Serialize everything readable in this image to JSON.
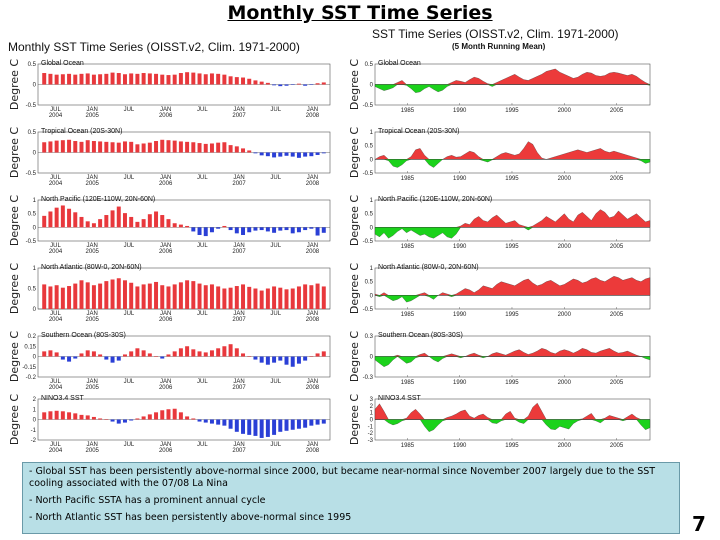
{
  "slide": {
    "title": "Monthly SST Time Series",
    "page_number": "7",
    "notes": [
      "- Global SST has been persistently above-normal since 2000, but became near-normal since November 2007 largely due to the SST cooling associated with the 07/08 La Nina",
      "- North Pacific SSTA has a prominent annual cycle",
      "- North Atlantic SST has been persistently above-normal since 1995"
    ]
  },
  "left_header": "Monthly SST Time Series (OISST.v2, Clim. 1971-2000)",
  "right_header": "SST Time Series (OISST.v2, Clim. 1971-2000)",
  "right_subheader": "(5 Month Running Mean)",
  "ylabel": "Degree C",
  "colors": {
    "positive": "#e8383c",
    "negative": "#2a3fd6",
    "positive_area": "#ec3a3a",
    "negative_area": "#1bd21b"
  },
  "chart_data": [
    {
      "type": "bar",
      "title": "Global Ocean",
      "ylabel": "Degree C",
      "ylim": [
        -0.5,
        0.5
      ],
      "yticks": [
        "0.5",
        "0",
        "-0.5"
      ],
      "xticks": [
        [
          "JUL",
          "2004"
        ],
        [
          "JAN",
          "2005"
        ],
        [
          "JUL",
          ""
        ],
        [
          "JAN",
          "2006"
        ],
        [
          "JUL",
          ""
        ],
        [
          "JAN",
          "2007"
        ],
        [
          "JUL",
          ""
        ],
        [
          "JAN",
          "2008"
        ]
      ],
      "values": [
        0.28,
        0.26,
        0.24,
        0.25,
        0.26,
        0.24,
        0.26,
        0.27,
        0.24,
        0.25,
        0.26,
        0.29,
        0.28,
        0.25,
        0.27,
        0.26,
        0.28,
        0.27,
        0.26,
        0.24,
        0.23,
        0.24,
        0.28,
        0.3,
        0.29,
        0.27,
        0.25,
        0.27,
        0.26,
        0.24,
        0.2,
        0.18,
        0.17,
        0.14,
        0.1,
        0.07,
        0.04,
        -0.02,
        -0.04,
        -0.03,
        -0.01,
        0.02,
        -0.03,
        -0.01,
        0.03,
        0.05
      ]
    },
    {
      "type": "bar",
      "title": "Tropical Ocean (20S-30N)",
      "ylabel": "Degree C",
      "ylim": [
        -0.5,
        0.5
      ],
      "yticks": [
        "0.5",
        "0",
        "-0.5"
      ],
      "xticks": [
        [
          "JUL",
          "2004"
        ],
        [
          "JAN",
          "2005"
        ],
        [
          "JUL",
          ""
        ],
        [
          "JAN",
          "2006"
        ],
        [
          "JUL",
          ""
        ],
        [
          "JAN",
          "2007"
        ],
        [
          "JUL",
          ""
        ],
        [
          "JAN",
          "2008"
        ]
      ],
      "values": [
        0.25,
        0.27,
        0.29,
        0.3,
        0.31,
        0.28,
        0.26,
        0.3,
        0.28,
        0.27,
        0.26,
        0.25,
        0.24,
        0.27,
        0.26,
        0.2,
        0.22,
        0.24,
        0.28,
        0.31,
        0.3,
        0.29,
        0.27,
        0.26,
        0.25,
        0.23,
        0.21,
        0.22,
        0.24,
        0.25,
        0.18,
        0.15,
        0.1,
        0.05,
        -0.02,
        -0.07,
        -0.09,
        -0.12,
        -0.1,
        -0.08,
        -0.1,
        -0.13,
        -0.1,
        -0.09,
        -0.06,
        -0.02
      ]
    },
    {
      "type": "bar",
      "title": "North Pacific (120E-110W, 20N-60N)",
      "ylabel": "Degree C",
      "ylim": [
        -0.5,
        1
      ],
      "yticks": [
        "1",
        "0.5",
        "0",
        "-0.5"
      ],
      "xticks": [
        [
          "JUL",
          "2004"
        ],
        [
          "JAN",
          "2005"
        ],
        [
          "JUL",
          ""
        ],
        [
          "JAN",
          "2006"
        ],
        [
          "JUL",
          ""
        ],
        [
          "JAN",
          "2007"
        ],
        [
          "JUL",
          ""
        ],
        [
          "JAN",
          "2008"
        ]
      ],
      "values": [
        0.42,
        0.58,
        0.72,
        0.8,
        0.68,
        0.55,
        0.38,
        0.22,
        0.15,
        0.3,
        0.45,
        0.62,
        0.76,
        0.52,
        0.38,
        0.2,
        0.3,
        0.48,
        0.58,
        0.45,
        0.3,
        0.15,
        0.1,
        0.05,
        -0.15,
        -0.28,
        -0.32,
        -0.18,
        -0.05,
        0.05,
        -0.1,
        -0.22,
        -0.28,
        -0.18,
        -0.12,
        -0.1,
        -0.15,
        -0.2,
        -0.12,
        -0.1,
        -0.22,
        -0.18,
        -0.1,
        -0.05,
        -0.3,
        -0.2
      ]
    },
    {
      "type": "bar",
      "title": "North Atlantic (80W-0, 20N-60N)",
      "ylabel": "Degree C",
      "ylim": [
        0,
        1
      ],
      "yticks": [
        "1",
        "0.5",
        "0"
      ],
      "xticks": [
        [
          "JUL",
          "2004"
        ],
        [
          "JAN",
          "2005"
        ],
        [
          "JUL",
          ""
        ],
        [
          "JAN",
          "2006"
        ],
        [
          "JUL",
          ""
        ],
        [
          "JAN",
          "2007"
        ],
        [
          "JUL",
          ""
        ],
        [
          "JAN",
          "2008"
        ]
      ],
      "values": [
        0.6,
        0.55,
        0.58,
        0.52,
        0.56,
        0.62,
        0.7,
        0.65,
        0.58,
        0.62,
        0.68,
        0.72,
        0.75,
        0.7,
        0.64,
        0.55,
        0.6,
        0.62,
        0.66,
        0.58,
        0.55,
        0.6,
        0.65,
        0.7,
        0.68,
        0.62,
        0.58,
        0.6,
        0.55,
        0.5,
        0.52,
        0.56,
        0.6,
        0.54,
        0.5,
        0.45,
        0.5,
        0.55,
        0.52,
        0.48,
        0.5,
        0.55,
        0.6,
        0.58,
        0.62,
        0.55
      ]
    },
    {
      "type": "bar",
      "title": "Southern Ocean (80S-30S)",
      "ylabel": "Degree C",
      "ylim": [
        -0.2,
        0.2
      ],
      "yticks": [
        "0.2",
        "0.15",
        "0",
        "-0.15",
        "-0.2"
      ],
      "xticks": [
        [
          "JUL",
          "2004"
        ],
        [
          "JAN",
          "2005"
        ],
        [
          "JUL",
          ""
        ],
        [
          "JAN",
          "2006"
        ],
        [
          "JUL",
          ""
        ],
        [
          "JAN",
          "2007"
        ],
        [
          "JUL",
          ""
        ],
        [
          "JAN",
          "2008"
        ]
      ],
      "values": [
        0.05,
        0.06,
        0.04,
        -0.03,
        -0.05,
        -0.02,
        0.03,
        0.06,
        0.05,
        0.02,
        -0.03,
        -0.06,
        -0.04,
        0.02,
        0.05,
        0.08,
        0.06,
        0.03,
        0.0,
        -0.02,
        0.02,
        0.05,
        0.08,
        0.1,
        0.07,
        0.05,
        0.04,
        0.06,
        0.08,
        0.1,
        0.12,
        0.08,
        0.03,
        0.0,
        -0.03,
        -0.06,
        -0.08,
        -0.06,
        -0.04,
        -0.08,
        -0.1,
        -0.07,
        -0.04,
        0.0,
        0.03,
        0.05
      ]
    },
    {
      "type": "bar",
      "title": "NINO3.4 SST",
      "ylabel": "Degree C",
      "ylim": [
        -2,
        2
      ],
      "yticks": [
        "2",
        "1",
        "0",
        "-1",
        "-2"
      ],
      "xticks": [
        [
          "JUL",
          "2004"
        ],
        [
          "JAN",
          "2005"
        ],
        [
          "JUL",
          ""
        ],
        [
          "JAN",
          "2006"
        ],
        [
          "JUL",
          ""
        ],
        [
          "JAN",
          "2007"
        ],
        [
          "JUL",
          ""
        ],
        [
          "JAN",
          "2008"
        ]
      ],
      "values": [
        0.7,
        0.8,
        0.85,
        0.8,
        0.7,
        0.6,
        0.45,
        0.4,
        0.25,
        0.1,
        0.0,
        -0.2,
        -0.4,
        -0.3,
        -0.1,
        0.1,
        0.3,
        0.5,
        0.7,
        0.9,
        1.0,
        1.05,
        0.7,
        0.3,
        0.1,
        -0.2,
        -0.3,
        -0.4,
        -0.5,
        -0.6,
        -0.9,
        -1.2,
        -1.4,
        -1.5,
        -1.6,
        -1.8,
        -1.7,
        -1.5,
        -1.2,
        -1.1,
        -1.0,
        -0.9,
        -0.8,
        -0.6,
        -0.5,
        -0.4
      ]
    },
    {
      "type": "area",
      "title": "Global Ocean",
      "ylabel": "Degree C",
      "ylim": [
        -0.5,
        0.5
      ],
      "yticks": [
        "0.5",
        "0",
        "-0.5"
      ],
      "xticks": [
        "1985",
        "1990",
        "1995",
        "2000",
        "2005"
      ],
      "x_range": [
        1981.9,
        2008.2
      ],
      "values": [
        -0.05,
        -0.1,
        -0.15,
        -0.12,
        -0.08,
        0.05,
        0.1,
        -0.02,
        -0.1,
        -0.2,
        -0.18,
        -0.1,
        -0.05,
        -0.12,
        -0.18,
        -0.14,
        -0.05,
        0.05,
        0.1,
        0.08,
        0.05,
        0.12,
        0.18,
        0.15,
        0.08,
        0.02,
        -0.05,
        0.05,
        0.1,
        0.15,
        0.2,
        0.25,
        0.18,
        0.12,
        0.1,
        0.15,
        0.2,
        0.25,
        0.32,
        0.35,
        0.38,
        0.3,
        0.25,
        0.2,
        0.15,
        0.18,
        0.25,
        0.3,
        0.28,
        0.22,
        0.2,
        0.22,
        0.28,
        0.3,
        0.28,
        0.25,
        0.22,
        0.25,
        0.2,
        0.12,
        0.05,
        -0.02
      ]
    },
    {
      "type": "area",
      "title": "Tropical Ocean (20S-30N)",
      "ylabel": "Degree C",
      "ylim": [
        -0.5,
        1
      ],
      "yticks": [
        "1",
        "0.5",
        "0",
        "-0.5"
      ],
      "xticks": [
        "1985",
        "1990",
        "1995",
        "2000",
        "2005"
      ],
      "x_range": [
        1981.9,
        2008.2
      ],
      "values": [
        0.0,
        0.1,
        0.15,
        -0.05,
        -0.25,
        -0.3,
        -0.2,
        -0.05,
        0.1,
        0.35,
        0.4,
        0.15,
        -0.2,
        -0.3,
        -0.15,
        0.0,
        0.1,
        0.15,
        0.08,
        0.1,
        0.2,
        0.3,
        0.25,
        0.1,
        -0.05,
        -0.1,
        -0.02,
        0.1,
        0.2,
        0.25,
        0.2,
        0.15,
        0.2,
        0.4,
        0.65,
        0.55,
        0.25,
        0.05,
        0.0,
        0.05,
        0.1,
        0.15,
        0.2,
        0.25,
        0.3,
        0.35,
        0.3,
        0.25,
        0.3,
        0.35,
        0.4,
        0.3,
        0.25,
        0.3,
        0.25,
        0.2,
        0.15,
        0.1,
        0.05,
        -0.05,
        -0.15,
        -0.1
      ]
    },
    {
      "type": "area",
      "title": "North Pacific (120E-110W, 20N-60N)",
      "ylabel": "Degree C",
      "ylim": [
        -0.5,
        1
      ],
      "yticks": [
        "1",
        "0.5",
        "0",
        "-0.5"
      ],
      "xticks": [
        "1985",
        "1990",
        "1995",
        "2000",
        "2005"
      ],
      "x_range": [
        1981.9,
        2008.2
      ],
      "values": [
        -0.25,
        -0.35,
        -0.2,
        -0.4,
        -0.3,
        -0.15,
        -0.05,
        -0.2,
        -0.1,
        -0.2,
        -0.3,
        -0.25,
        -0.35,
        -0.4,
        -0.3,
        -0.2,
        -0.35,
        -0.4,
        -0.25,
        0.05,
        0.15,
        0.1,
        0.3,
        0.4,
        0.25,
        0.2,
        0.35,
        0.45,
        0.3,
        0.15,
        0.2,
        0.25,
        0.1,
        0.05,
        -0.1,
        0.05,
        0.15,
        0.25,
        0.4,
        0.3,
        0.2,
        0.35,
        0.5,
        0.3,
        0.2,
        0.45,
        0.55,
        0.4,
        0.25,
        0.5,
        0.65,
        0.55,
        0.35,
        0.4,
        0.6,
        0.45,
        0.3,
        0.4,
        0.5,
        0.35,
        0.2,
        0.25
      ]
    },
    {
      "type": "area",
      "title": "North Atlantic (80W-0, 20N-60N)",
      "ylabel": "Degree C",
      "ylim": [
        -0.5,
        1
      ],
      "yticks": [
        "1",
        "0.5",
        "0",
        "-0.5"
      ],
      "xticks": [
        "1985",
        "1990",
        "1995",
        "2000",
        "2005"
      ],
      "x_range": [
        1981.9,
        2008.2
      ],
      "values": [
        0.05,
        -0.05,
        0.1,
        -0.1,
        -0.2,
        -0.15,
        -0.05,
        -0.25,
        -0.2,
        -0.1,
        0.05,
        0.1,
        -0.05,
        -0.15,
        0.0,
        0.1,
        0.05,
        -0.05,
        0.05,
        0.15,
        0.25,
        0.2,
        0.1,
        0.2,
        0.35,
        0.3,
        0.25,
        0.4,
        0.5,
        0.45,
        0.4,
        0.35,
        0.45,
        0.55,
        0.6,
        0.45,
        0.35,
        0.4,
        0.5,
        0.55,
        0.45,
        0.35,
        0.4,
        0.5,
        0.6,
        0.55,
        0.45,
        0.5,
        0.6,
        0.65,
        0.55,
        0.5,
        0.6,
        0.7,
        0.65,
        0.55,
        0.6,
        0.65,
        0.55,
        0.5,
        0.6,
        0.65
      ]
    },
    {
      "type": "area",
      "title": "Southern Ocean (80S-30S)",
      "ylabel": "Degree C",
      "ylim": [
        -0.3,
        0.3
      ],
      "yticks": [
        "0.3",
        "0",
        "-0.3"
      ],
      "xticks": [
        "1985",
        "1990",
        "1995",
        "2000",
        "2005"
      ],
      "x_range": [
        1981.9,
        2008.2
      ],
      "values": [
        -0.05,
        -0.1,
        -0.15,
        -0.12,
        -0.05,
        0.02,
        -0.05,
        -0.1,
        -0.08,
        -0.02,
        0.03,
        0.05,
        0.0,
        -0.05,
        -0.08,
        -0.03,
        0.02,
        0.04,
        0.02,
        -0.02,
        0.0,
        0.03,
        0.05,
        0.02,
        -0.02,
        0.0,
        0.04,
        0.06,
        0.04,
        0.02,
        0.05,
        0.08,
        0.1,
        0.06,
        0.03,
        0.05,
        0.08,
        0.12,
        0.1,
        0.06,
        0.04,
        0.08,
        0.1,
        0.08,
        0.05,
        0.08,
        0.12,
        0.1,
        0.06,
        0.05,
        0.08,
        0.1,
        0.12,
        0.08,
        0.05,
        0.06,
        0.08,
        0.05,
        0.02,
        0.0,
        -0.03,
        -0.05
      ]
    },
    {
      "type": "area",
      "title": "NINO3.4 SST",
      "ylabel": "Degree C",
      "ylim": [
        -3,
        3
      ],
      "yticks": [
        "3",
        "2",
        "1",
        "0",
        "-1",
        "-2",
        "-3"
      ],
      "xticks": [
        "1985",
        "1990",
        "1995",
        "2000",
        "2005"
      ],
      "x_range": [
        1981.9,
        2008.2
      ],
      "values": [
        1.5,
        2.3,
        1.2,
        -0.5,
        -0.8,
        -0.6,
        -0.2,
        0.2,
        1.0,
        1.5,
        0.8,
        -1.0,
        -1.8,
        -1.5,
        -0.8,
        -0.2,
        0.3,
        0.5,
        0.8,
        1.2,
        1.4,
        0.5,
        0.2,
        0.6,
        0.8,
        0.3,
        -0.5,
        -0.6,
        -0.2,
        0.8,
        1.2,
        0.2,
        -0.4,
        -0.6,
        0.5,
        1.8,
        2.4,
        1.2,
        -0.8,
        -1.4,
        -1.5,
        -1.0,
        -1.2,
        -1.4,
        -0.6,
        -0.2,
        0.1,
        0.5,
        0.9,
        -0.2,
        -0.5,
        0.2,
        0.6,
        0.4,
        0.2,
        -0.2,
        0.4,
        0.8,
        0.3,
        -0.8,
        -1.5,
        -1.2
      ]
    }
  ]
}
